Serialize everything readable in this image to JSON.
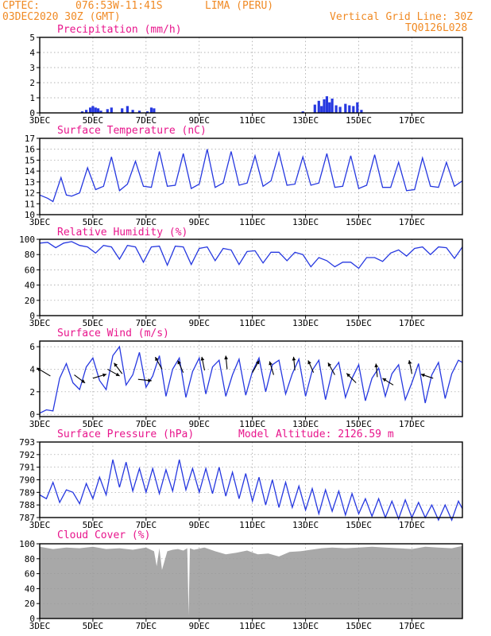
{
  "header": {
    "source": "CPTEC:",
    "coords": "076:53W-11:41S",
    "location": "LIMA (PERU)",
    "run": "03DEC2020 30Z (GMT)",
    "grid_note": "Vertical Grid Line: 30Z",
    "code": "TQ0126L028"
  },
  "model_altitude": "Model Altitude: 2126.59 m",
  "colors": {
    "header": "#f08a24",
    "panel_title": "#e8158c",
    "series": "#2638e0",
    "cloud": "#a8a8a8",
    "arrow": "#000000"
  },
  "x_axis": {
    "tick_labels": [
      "3DEC",
      "5DEC",
      "7DEC",
      "9DEC",
      "11DEC",
      "13DEC",
      "15DEC",
      "17DEC"
    ],
    "tick_days": [
      0,
      2,
      4,
      6,
      8,
      10,
      12,
      14
    ],
    "range_days": [
      0,
      15.9
    ]
  },
  "chart_data": [
    {
      "id": "precip",
      "type": "bar",
      "title": "Precipitation (mm/h)",
      "ylim": [
        0,
        5
      ],
      "yticks": [
        "0",
        "1",
        "2",
        "3",
        "4",
        "5"
      ],
      "x_days": [
        1.6,
        1.75,
        1.9,
        2.0,
        2.1,
        2.2,
        2.3,
        2.55,
        2.7,
        3.1,
        3.3,
        3.5,
        3.75,
        4.05,
        4.2,
        4.3,
        9.9,
        10.35,
        10.5,
        10.6,
        10.7,
        10.8,
        10.9,
        11.0,
        11.15,
        11.3,
        11.5,
        11.65,
        11.8,
        11.95,
        12.1
      ],
      "values": [
        0.1,
        0.2,
        0.35,
        0.45,
        0.35,
        0.3,
        0.15,
        0.25,
        0.35,
        0.3,
        0.45,
        0.2,
        0.15,
        0.1,
        0.35,
        0.3,
        0.1,
        0.55,
        0.8,
        0.45,
        0.9,
        1.1,
        0.7,
        0.95,
        0.5,
        0.4,
        0.6,
        0.5,
        0.45,
        0.7,
        0.2
      ]
    },
    {
      "id": "temp",
      "type": "line",
      "title": "Surface Temperature (nC)",
      "ylim": [
        10,
        17
      ],
      "yticks": [
        "10",
        "11",
        "12",
        "13",
        "14",
        "15",
        "16",
        "17"
      ],
      "x_days": [
        0,
        0.3,
        0.5,
        0.8,
        1.0,
        1.2,
        1.5,
        1.8,
        2.1,
        2.4,
        2.7,
        3.0,
        3.3,
        3.6,
        3.9,
        4.2,
        4.5,
        4.8,
        5.1,
        5.4,
        5.7,
        6.0,
        6.3,
        6.6,
        6.9,
        7.2,
        7.5,
        7.8,
        8.1,
        8.4,
        8.7,
        9.0,
        9.3,
        9.6,
        9.9,
        10.2,
        10.5,
        10.8,
        11.1,
        11.4,
        11.7,
        12.0,
        12.3,
        12.6,
        12.9,
        13.2,
        13.5,
        13.8,
        14.1,
        14.4,
        14.7,
        15.0,
        15.3,
        15.6,
        15.9
      ],
      "values": [
        11.8,
        11.5,
        11.2,
        13.4,
        11.8,
        11.7,
        12.0,
        14.3,
        12.3,
        12.6,
        15.3,
        12.2,
        12.8,
        14.9,
        12.6,
        12.5,
        15.8,
        12.6,
        12.7,
        15.6,
        12.4,
        12.8,
        16.0,
        12.5,
        12.9,
        15.8,
        12.7,
        12.9,
        15.4,
        12.6,
        13.1,
        15.7,
        12.7,
        12.8,
        15.3,
        12.7,
        12.9,
        15.6,
        12.5,
        12.6,
        15.4,
        12.4,
        12.7,
        15.5,
        12.5,
        12.5,
        14.8,
        12.2,
        12.3,
        15.2,
        12.6,
        12.5,
        14.8,
        12.6,
        13.1
      ]
    },
    {
      "id": "rh",
      "type": "line",
      "title": "Relative Humidity (%)",
      "ylim": [
        0,
        100
      ],
      "yticks": [
        "0",
        "20",
        "40",
        "60",
        "80",
        "100"
      ],
      "x_days": [
        0,
        0.3,
        0.6,
        0.9,
        1.2,
        1.5,
        1.8,
        2.1,
        2.4,
        2.7,
        3.0,
        3.3,
        3.6,
        3.9,
        4.2,
        4.5,
        4.8,
        5.1,
        5.4,
        5.7,
        6.0,
        6.3,
        6.6,
        6.9,
        7.2,
        7.5,
        7.8,
        8.1,
        8.4,
        8.7,
        9.0,
        9.3,
        9.6,
        9.9,
        10.2,
        10.5,
        10.8,
        11.1,
        11.4,
        11.7,
        12.0,
        12.3,
        12.6,
        12.9,
        13.2,
        13.5,
        13.8,
        14.1,
        14.4,
        14.7,
        15.0,
        15.3,
        15.6,
        15.9
      ],
      "values": [
        95,
        96,
        89,
        95,
        97,
        92,
        90,
        82,
        92,
        90,
        74,
        92,
        90,
        70,
        90,
        91,
        66,
        91,
        90,
        67,
        88,
        90,
        72,
        88,
        86,
        67,
        84,
        85,
        69,
        83,
        83,
        72,
        83,
        80,
        64,
        76,
        72,
        64,
        70,
        70,
        62,
        76,
        76,
        71,
        82,
        86,
        78,
        88,
        90,
        80,
        90,
        89,
        75,
        90
      ]
    },
    {
      "id": "wind",
      "type": "line",
      "title": "Surface Wind (m/s)",
      "ylim": [
        -0.2,
        6.5
      ],
      "yticks": [
        "0",
        "2",
        "4",
        "6"
      ],
      "x_days": [
        0,
        0.25,
        0.5,
        0.75,
        1.0,
        1.25,
        1.5,
        1.75,
        2.0,
        2.25,
        2.5,
        2.75,
        3.0,
        3.25,
        3.5,
        3.75,
        4.0,
        4.25,
        4.5,
        4.75,
        5.0,
        5.25,
        5.5,
        5.75,
        6.0,
        6.25,
        6.5,
        6.75,
        7.0,
        7.25,
        7.5,
        7.75,
        8.0,
        8.25,
        8.5,
        8.75,
        9.0,
        9.25,
        9.5,
        9.75,
        10.0,
        10.25,
        10.5,
        10.75,
        11.0,
        11.25,
        11.5,
        11.75,
        12.0,
        12.25,
        12.5,
        12.75,
        13.0,
        13.25,
        13.5,
        13.75,
        14.0,
        14.25,
        14.5,
        14.75,
        15.0,
        15.25,
        15.5,
        15.75,
        15.9
      ],
      "values": [
        0.1,
        0.4,
        0.3,
        3.2,
        4.5,
        2.8,
        2.2,
        4.2,
        5.0,
        3.0,
        2.2,
        5.2,
        6.0,
        2.6,
        3.5,
        5.5,
        2.4,
        3.4,
        5.2,
        1.6,
        4.0,
        5.0,
        1.5,
        3.8,
        5.0,
        1.8,
        4.2,
        4.8,
        1.6,
        3.5,
        4.9,
        1.7,
        3.8,
        5.0,
        2.0,
        4.4,
        4.8,
        1.8,
        3.6,
        4.9,
        1.6,
        3.9,
        4.8,
        1.3,
        3.8,
        4.6,
        1.5,
        3.2,
        4.4,
        1.2,
        3.2,
        4.1,
        1.6,
        3.6,
        4.4,
        1.3,
        2.8,
        4.5,
        1.0,
        3.5,
        4.6,
        1.4,
        3.6,
        4.8,
        4.6
      ],
      "arrows": [
        {
          "day": 0.4,
          "value": 3.4,
          "dx": -1.0,
          "dy": 0.6
        },
        {
          "day": 1.3,
          "value": 3.5,
          "dx": 0.8,
          "dy": -0.6
        },
        {
          "day": 2.0,
          "value": 3.2,
          "dx": 1.0,
          "dy": 0.3
        },
        {
          "day": 2.55,
          "value": 4.0,
          "dx": 0.9,
          "dy": -0.5
        },
        {
          "day": 3.1,
          "value": 3.6,
          "dx": -0.6,
          "dy": 0.8
        },
        {
          "day": 3.7,
          "value": 3.1,
          "dx": 1.0,
          "dy": -0.1
        },
        {
          "day": 4.6,
          "value": 4.0,
          "dx": -0.5,
          "dy": 0.9
        },
        {
          "day": 5.4,
          "value": 3.7,
          "dx": -0.4,
          "dy": 0.9
        },
        {
          "day": 6.2,
          "value": 3.9,
          "dx": -0.2,
          "dy": 1.0
        },
        {
          "day": 7.05,
          "value": 4.0,
          "dx": -0.1,
          "dy": 1.0
        },
        {
          "day": 8.0,
          "value": 3.7,
          "dx": 0.5,
          "dy": 0.9
        },
        {
          "day": 8.8,
          "value": 3.5,
          "dx": -0.3,
          "dy": 1.0
        },
        {
          "day": 9.6,
          "value": 3.9,
          "dx": -0.1,
          "dy": 1.0
        },
        {
          "day": 10.3,
          "value": 3.7,
          "dx": -0.4,
          "dy": 0.9
        },
        {
          "day": 11.1,
          "value": 3.5,
          "dx": -0.5,
          "dy": 0.9
        },
        {
          "day": 11.9,
          "value": 2.8,
          "dx": -0.7,
          "dy": 0.7
        },
        {
          "day": 12.7,
          "value": 3.3,
          "dx": -0.1,
          "dy": 1.0
        },
        {
          "day": 13.3,
          "value": 2.6,
          "dx": -0.8,
          "dy": 0.5
        },
        {
          "day": 14.0,
          "value": 3.6,
          "dx": -0.2,
          "dy": 1.0
        },
        {
          "day": 14.8,
          "value": 3.2,
          "dx": -0.9,
          "dy": 0.3
        }
      ]
    },
    {
      "id": "pres",
      "type": "line",
      "title": "Surface Pressure (hPa)",
      "ylim": [
        787,
        793
      ],
      "yticks": [
        "787",
        "788",
        "789",
        "790",
        "791",
        "792",
        "793"
      ],
      "x_days": [
        0,
        0.25,
        0.5,
        0.75,
        1.0,
        1.25,
        1.5,
        1.75,
        2.0,
        2.25,
        2.5,
        2.75,
        3.0,
        3.25,
        3.5,
        3.75,
        4.0,
        4.25,
        4.5,
        4.75,
        5.0,
        5.25,
        5.5,
        5.75,
        6.0,
        6.25,
        6.5,
        6.75,
        7.0,
        7.25,
        7.5,
        7.75,
        8.0,
        8.25,
        8.5,
        8.75,
        9.0,
        9.25,
        9.5,
        9.75,
        10.0,
        10.25,
        10.5,
        10.75,
        11.0,
        11.25,
        11.5,
        11.75,
        12.0,
        12.25,
        12.5,
        12.75,
        13.0,
        13.25,
        13.5,
        13.75,
        14.0,
        14.25,
        14.5,
        14.75,
        15.0,
        15.25,
        15.5,
        15.75,
        15.9
      ],
      "values": [
        788.8,
        788.5,
        789.8,
        788.2,
        789.2,
        789.0,
        788.1,
        789.7,
        788.5,
        790.2,
        788.8,
        791.6,
        789.4,
        791.4,
        789.1,
        790.9,
        789.0,
        790.9,
        788.9,
        790.8,
        789.1,
        791.6,
        789.2,
        790.9,
        789.0,
        790.9,
        788.9,
        791.0,
        788.7,
        790.6,
        788.5,
        790.5,
        788.3,
        790.2,
        788.0,
        790.0,
        787.8,
        789.8,
        787.8,
        789.5,
        787.6,
        789.3,
        787.3,
        789.2,
        787.5,
        789.1,
        787.2,
        788.9,
        787.3,
        788.5,
        787.1,
        788.5,
        787.0,
        788.3,
        786.9,
        788.4,
        787.0,
        788.2,
        787.0,
        788.0,
        786.8,
        788.0,
        786.8,
        788.3,
        787.7
      ]
    },
    {
      "id": "cloud",
      "type": "area",
      "title": "Cloud Cover (%)",
      "ylim": [
        0,
        100
      ],
      "yticks": [
        "0",
        "20",
        "40",
        "60",
        "80",
        "100"
      ],
      "x_days": [
        0,
        0.5,
        1.0,
        1.5,
        2.0,
        2.5,
        3.0,
        3.5,
        4.0,
        4.3,
        4.4,
        4.5,
        4.6,
        4.8,
        5.0,
        5.2,
        5.4,
        5.55,
        5.6,
        5.65,
        5.8,
        6.2,
        6.6,
        7.0,
        7.4,
        7.8,
        8.2,
        8.6,
        9.0,
        9.4,
        9.8,
        10.2,
        10.6,
        11.0,
        11.5,
        12.0,
        12.5,
        13.0,
        13.5,
        14.0,
        14.5,
        15.0,
        15.5,
        15.9
      ],
      "values": [
        96,
        93,
        95,
        94,
        96,
        93,
        94,
        92,
        95,
        90,
        70,
        94,
        65,
        90,
        92,
        93,
        91,
        94,
        4,
        94,
        92,
        95,
        90,
        86,
        88,
        91,
        86,
        87,
        83,
        89,
        90,
        92,
        94,
        95,
        94,
        95,
        96,
        95,
        94,
        93,
        96,
        95,
        94,
        97
      ]
    }
  ]
}
